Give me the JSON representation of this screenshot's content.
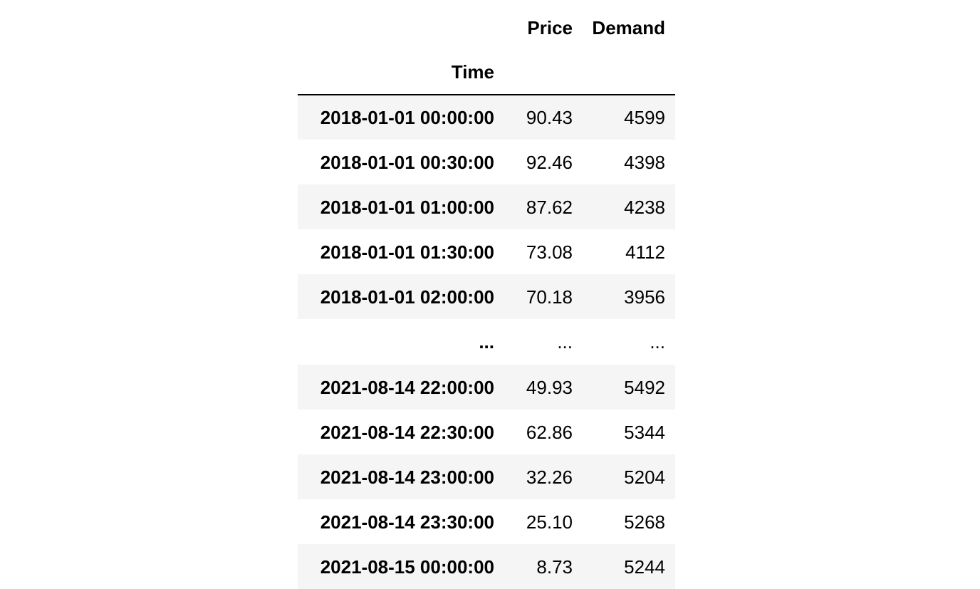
{
  "columns": {
    "price": "Price",
    "demand": "Demand",
    "index_name": "Time"
  },
  "rows_top": [
    {
      "time": "2018-01-01 00:00:00",
      "price": "90.43",
      "demand": "4599"
    },
    {
      "time": "2018-01-01 00:30:00",
      "price": "92.46",
      "demand": "4398"
    },
    {
      "time": "2018-01-01 01:00:00",
      "price": "87.62",
      "demand": "4238"
    },
    {
      "time": "2018-01-01 01:30:00",
      "price": "73.08",
      "demand": "4112"
    },
    {
      "time": "2018-01-01 02:00:00",
      "price": "70.18",
      "demand": "3956"
    }
  ],
  "ellipsis": {
    "time": "...",
    "price": "...",
    "demand": "..."
  },
  "rows_bottom": [
    {
      "time": "2021-08-14 22:00:00",
      "price": "49.93",
      "demand": "5492"
    },
    {
      "time": "2021-08-14 22:30:00",
      "price": "62.86",
      "demand": "5344"
    },
    {
      "time": "2021-08-14 23:00:00",
      "price": "32.26",
      "demand": "5204"
    },
    {
      "time": "2021-08-14 23:30:00",
      "price": "25.10",
      "demand": "5268"
    },
    {
      "time": "2021-08-15 00:00:00",
      "price": "8.73",
      "demand": "5244"
    }
  ]
}
